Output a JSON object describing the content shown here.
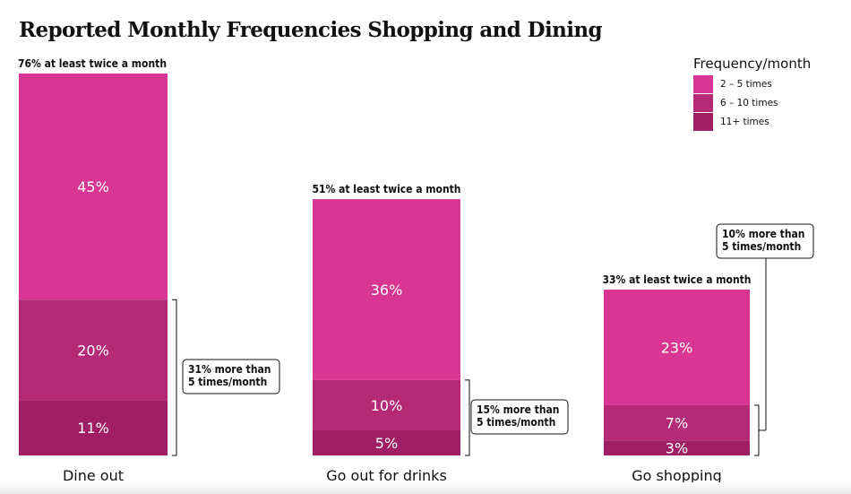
{
  "chart_data": {
    "type": "bar",
    "stacked": true,
    "title": "Reported Monthly Frequencies Shopping and Dining",
    "categories": [
      "Dine out",
      "Go out for drinks",
      "Go shopping"
    ],
    "series": [
      {
        "name": "2 – 5 times",
        "values": [
          45,
          36,
          23
        ],
        "labels": [
          "45%",
          "36%",
          "23%"
        ],
        "color": "#d93593"
      },
      {
        "name": "6 – 10 times",
        "values": [
          20,
          10,
          7
        ],
        "labels": [
          "20%",
          "10%",
          "7%"
        ],
        "color": "#b42a77"
      },
      {
        "name": "11+ times",
        "values": [
          11,
          5,
          3
        ],
        "labels": [
          "11%",
          "5%",
          "3%"
        ],
        "color": "#a01f64"
      }
    ],
    "totals": [
      "76% at least twice a month",
      "51% at least twice a month",
      "33% at least twice a month"
    ],
    "callouts": [
      [
        "31% more than",
        "5 times/month"
      ],
      [
        "15% more than",
        "5 times/month"
      ],
      [
        "10% more than",
        "5 times/month"
      ]
    ],
    "legend": {
      "title": "Frequency/month",
      "position": "top-right"
    },
    "ylim": [
      0,
      76
    ],
    "grid": false
  }
}
